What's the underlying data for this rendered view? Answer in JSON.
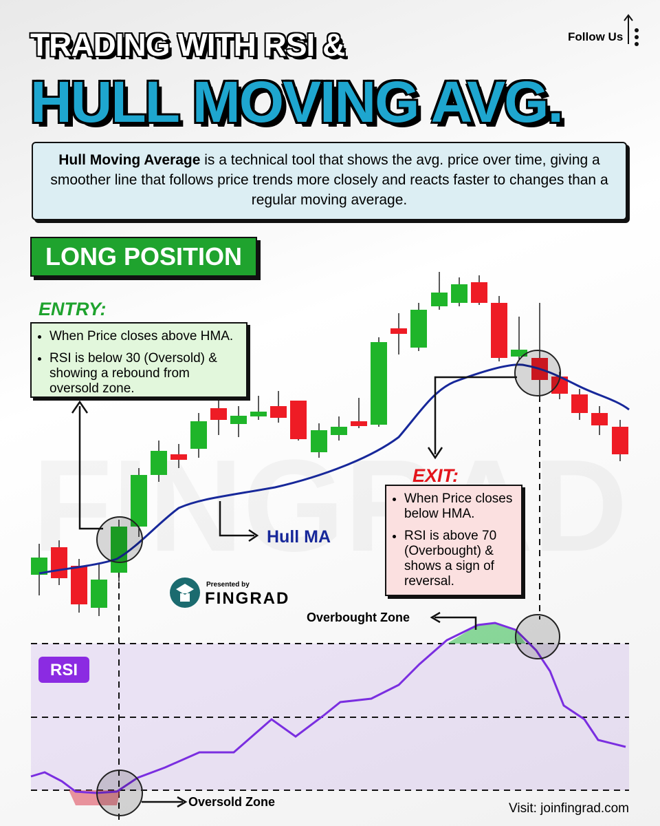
{
  "header": {
    "title_line1": "TRADING WITH RSI &",
    "title_line2": "HULL MOVING AVG.",
    "follow": "Follow Us"
  },
  "intro": {
    "bold": "Hull Moving Average",
    "text": " is a technical tool that shows the avg. price over time, giving a smoother line that follows price trends more closely and reacts faster to changes than a regular moving average."
  },
  "badge": "LONG POSITION",
  "entry": {
    "heading": "ENTRY:",
    "bullets": [
      "When Price closes above HMA.",
      "RSI is below 30 (Oversold) & showing a rebound from oversold zone."
    ]
  },
  "exit": {
    "heading": "EXIT:",
    "bullets": [
      "When Price closes below HMA.",
      "RSI is above 70 (Overbought) & shows a sign of reversal."
    ]
  },
  "labels": {
    "hull_ma": "Hull MA",
    "presented_by": "Presented by",
    "brand": "FINGRAD",
    "overbought": "Overbought Zone",
    "oversold": "Oversold Zone",
    "rsi": "RSI",
    "watermark": "FINGRAD"
  },
  "footer": "Visit: joinfingrad.com"
}
